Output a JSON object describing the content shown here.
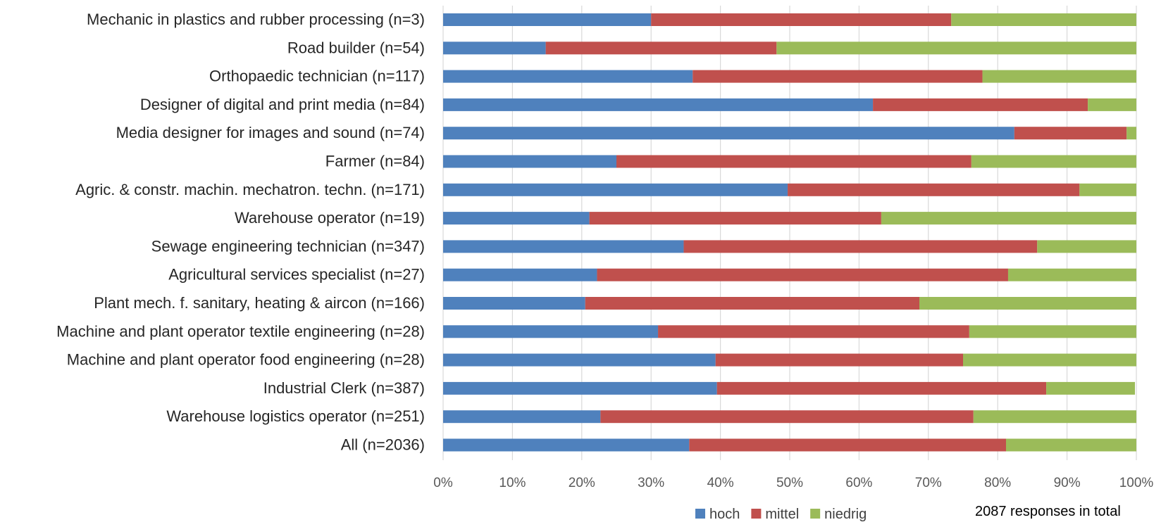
{
  "chart_data": {
    "type": "bar",
    "orientation": "horizontal",
    "stacked": true,
    "percent_stacked": true,
    "categories": [
      "Mechanic in plastics and rubber processing (n=3)",
      "Road builder (n=54)",
      "Orthopaedic technician (n=117)",
      "Designer of digital and print media (n=84)",
      "Media designer for images and sound (n=74)",
      "Farmer (n=84)",
      "Agric. & constr. machin. mechatron. techn. (n=171)",
      "Warehouse operator (n=19)",
      "Sewage engineering technician (n=347)",
      "Agricultural services specialist (n=27)",
      "Plant mech. f. sanitary, heating & aircon (n=166)",
      "Machine and plant operator textile engineering (n=28)",
      "Machine and plant operator food engineering (n=28)",
      "Industrial Clerk (n=387)",
      "Warehouse logistics operator (n=251)",
      "All (n=2036)"
    ],
    "series": [
      {
        "name": "hoch",
        "color": "#4f81bd",
        "values": [
          0.3,
          0.148,
          0.36,
          0.62,
          0.824,
          0.25,
          0.497,
          0.211,
          0.347,
          0.222,
          0.205,
          0.31,
          0.393,
          0.395,
          0.227,
          0.355
        ]
      },
      {
        "name": "mittel",
        "color": "#c0504d",
        "values": [
          0.433,
          0.333,
          0.418,
          0.31,
          0.162,
          0.512,
          0.421,
          0.421,
          0.51,
          0.593,
          0.482,
          0.449,
          0.357,
          0.475,
          0.538,
          0.457
        ]
      },
      {
        "name": "niedrig",
        "color": "#9bbb59",
        "values": [
          0.267,
          0.519,
          0.222,
          0.07,
          0.014,
          0.238,
          0.082,
          0.368,
          0.143,
          0.185,
          0.313,
          0.241,
          0.25,
          0.128,
          0.235,
          0.188
        ]
      }
    ],
    "xlim": [
      0,
      1
    ],
    "x_ticks": [
      "0%",
      "10%",
      "20%",
      "30%",
      "40%",
      "50%",
      "60%",
      "70%",
      "80%",
      "90%",
      "100%"
    ],
    "grid": "vertical",
    "legend_position": "bottom",
    "title": "",
    "xlabel": "",
    "ylabel": ""
  },
  "note": "2087 responses in total"
}
